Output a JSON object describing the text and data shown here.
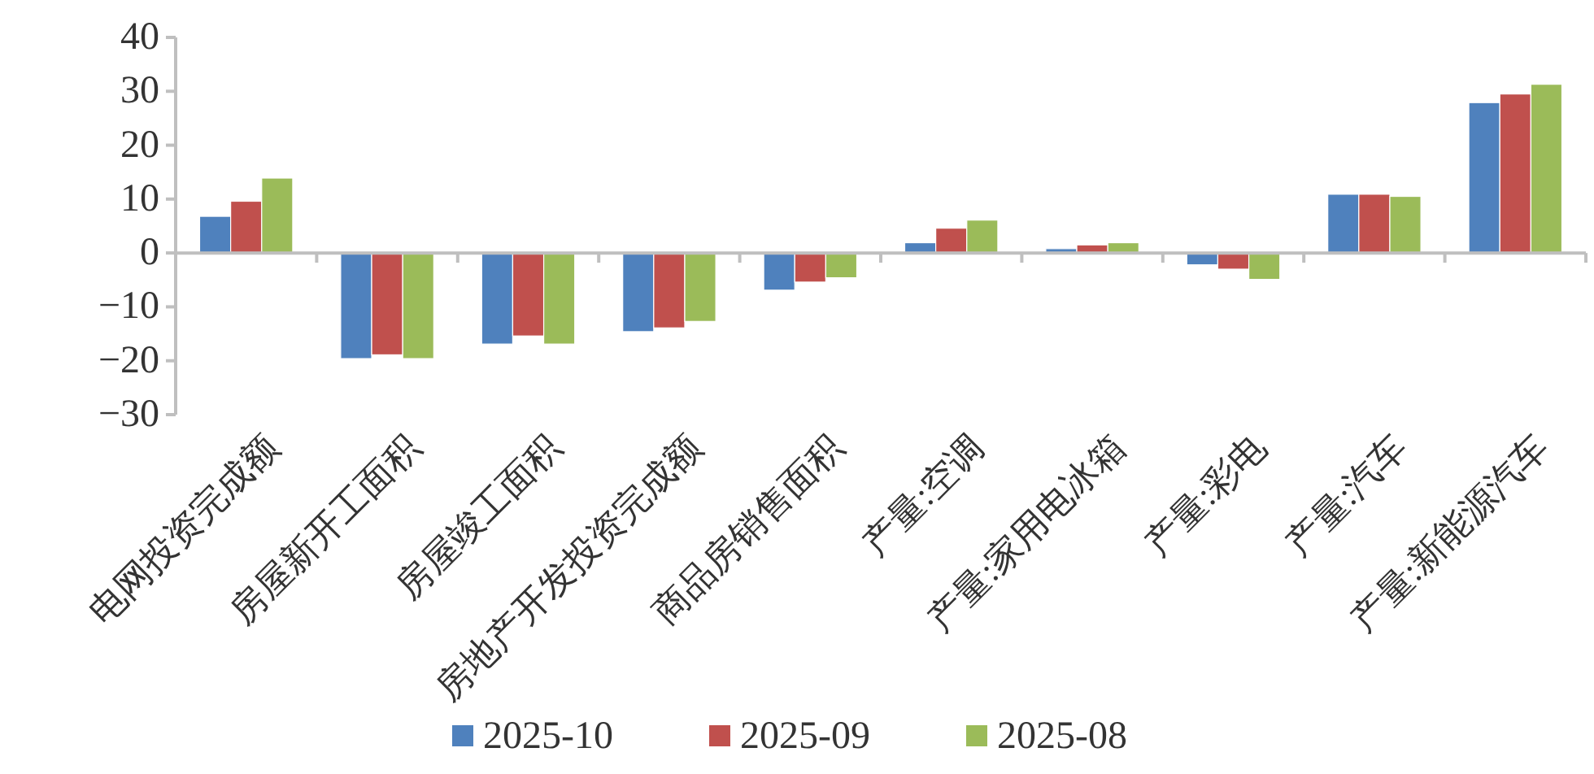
{
  "chart_data": {
    "type": "bar",
    "categories": [
      "电网投资完成额",
      "房屋新开工面积",
      "房屋竣工面积",
      "房地产开发投资完成额",
      "商品房销售面积",
      "产量:空调",
      "产量:家用电冰箱",
      "产量:彩电",
      "产量:汽车",
      "产量:新能源汽车"
    ],
    "series": [
      {
        "name": "2025-10",
        "color": "#4f81bd",
        "values": [
          6.8,
          -19.6,
          -16.9,
          -14.6,
          -6.9,
          1.9,
          0.8,
          -2.2,
          10.9,
          27.9
        ]
      },
      {
        "name": "2025-09",
        "color": "#c0504d",
        "values": [
          9.6,
          -18.9,
          -15.4,
          -13.9,
          -5.4,
          4.6,
          1.5,
          -3.0,
          10.9,
          29.5
        ]
      },
      {
        "name": "2025-08",
        "color": "#9bbb59",
        "values": [
          13.9,
          -19.6,
          -16.9,
          -12.7,
          -4.6,
          6.1,
          1.9,
          -4.9,
          10.5,
          31.3
        ]
      }
    ],
    "ylim": [
      -30,
      40
    ],
    "yticks": [
      -30,
      -20,
      -10,
      0,
      10,
      20,
      30,
      40
    ],
    "legend": "bottom"
  }
}
